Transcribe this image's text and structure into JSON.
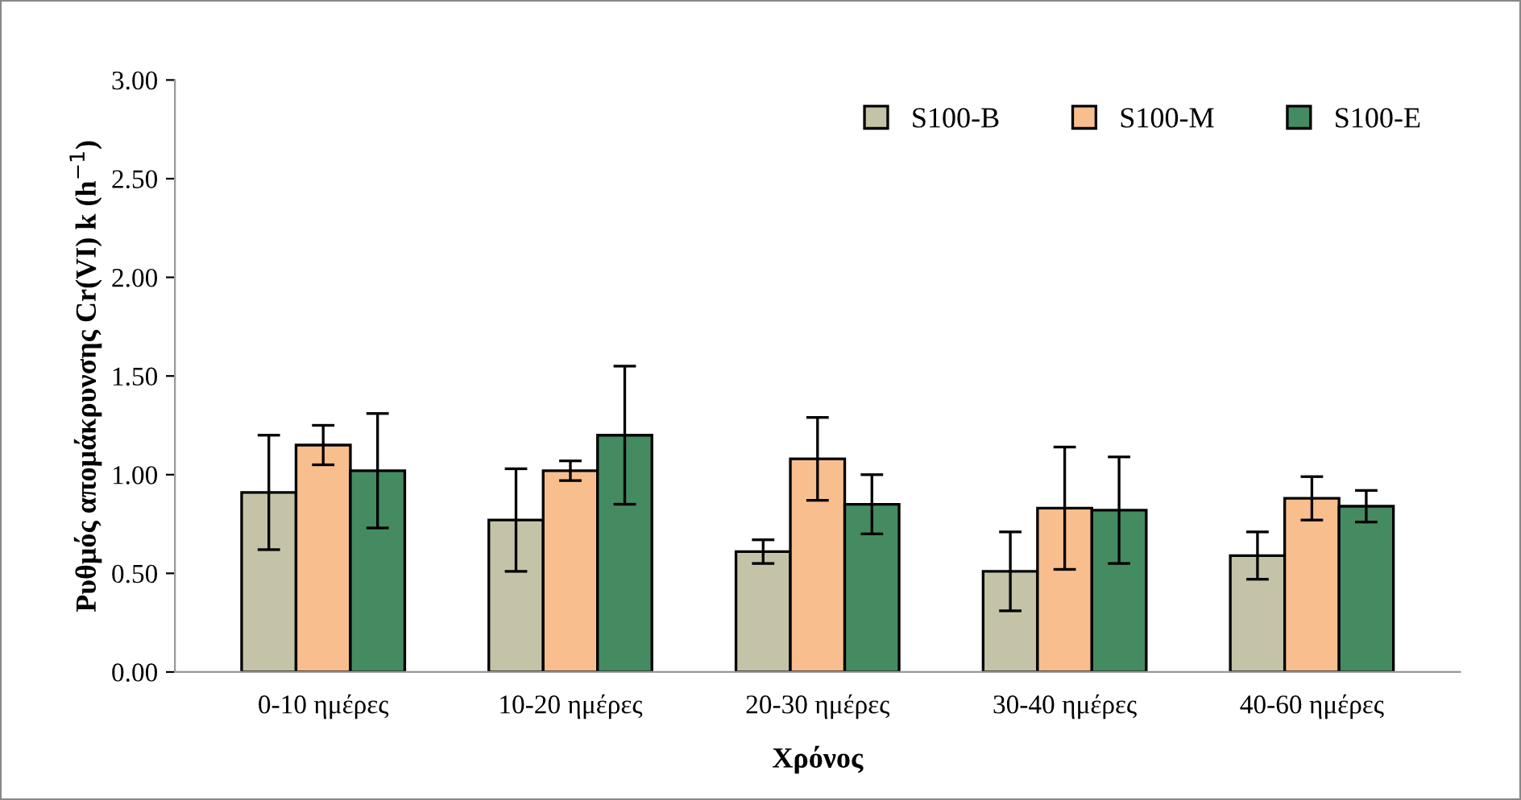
{
  "chart_data": {
    "type": "bar",
    "xlabel": "Χρόνος",
    "ylabel": "Ρυθμός απομάκρυνσης Cr(VI) k (h$^{−1}$)",
    "categories": [
      "0-10 ημέρες",
      "10-20 ημέρες",
      "20-30 ημέρες",
      "30-40 ημέρες",
      "40-60 ημέρες"
    ],
    "series": [
      {
        "name": "S100-B",
        "color": "#c4c3a8",
        "values": [
          0.91,
          0.77,
          0.61,
          0.51,
          0.59
        ],
        "errors": [
          0.29,
          0.26,
          0.06,
          0.2,
          0.12
        ]
      },
      {
        "name": "S100-M",
        "color": "#f9be8e",
        "values": [
          1.15,
          1.02,
          1.08,
          0.83,
          0.88
        ],
        "errors": [
          0.1,
          0.05,
          0.21,
          0.31,
          0.11
        ]
      },
      {
        "name": "S100-E",
        "color": "#458b62",
        "values": [
          1.02,
          1.2,
          0.85,
          0.82,
          0.84
        ],
        "errors": [
          0.29,
          0.35,
          0.15,
          0.27,
          0.08
        ]
      }
    ],
    "ylim": [
      0,
      3
    ],
    "yticks": [
      {
        "value": 0,
        "label": "0.00"
      },
      {
        "value": 0.5,
        "label": "0.50"
      },
      {
        "value": 1,
        "label": "1.00"
      },
      {
        "value": 1.5,
        "label": "1.50"
      },
      {
        "value": 2,
        "label": "2.00"
      },
      {
        "value": 2.5,
        "label": "2.50"
      },
      {
        "value": 3,
        "label": "3.00"
      }
    ],
    "legend": "top right",
    "grid": false
  }
}
